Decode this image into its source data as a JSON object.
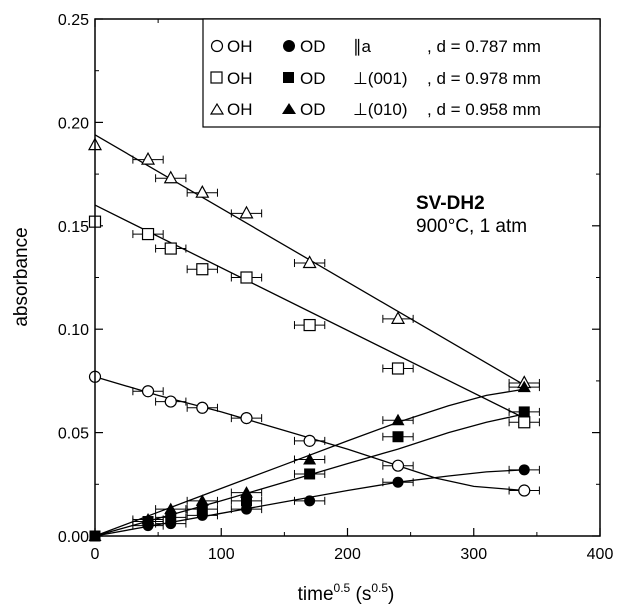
{
  "chart_data": {
    "type": "scatter",
    "xlabel_base": "time",
    "xlabel_sup1": "0.5",
    "xlabel_mid": " (s",
    "xlabel_sup2": "0.5",
    "xlabel_end": ")",
    "ylabel": "absorbance",
    "xlim": [
      0,
      400
    ],
    "ylim": [
      0,
      0.25
    ],
    "x_ticks": [
      "0",
      "100",
      "200",
      "300",
      "400"
    ],
    "y_ticks": [
      "0.00",
      "0.05",
      "0.10",
      "0.15",
      "0.20",
      "0.25"
    ],
    "annotation_title": "SV-DH2",
    "annotation_sub": "900°C, 1 atm",
    "legend_rows": [
      {
        "oh": "OH",
        "od": "OD",
        "orient": "∥a",
        "thickness": ", d = 0.787 mm"
      },
      {
        "oh": "OH",
        "od": "OD",
        "orient": "⊥(001)",
        "thickness": ", d = 0.978 mm"
      },
      {
        "oh": "OH",
        "od": "OD",
        "orient": "⊥(010)",
        "thickness": ", d = 0.958 mm"
      }
    ],
    "x": [
      0,
      42,
      60,
      85,
      120,
      170,
      240,
      340
    ],
    "x_error": 12,
    "series": [
      {
        "marker": "circle-open",
        "values": [
          0.077,
          0.07,
          0.065,
          0.062,
          0.057,
          0.046,
          0.034,
          0.022
        ]
      },
      {
        "marker": "square-open",
        "values": [
          0.152,
          0.146,
          0.139,
          0.129,
          0.125,
          0.102,
          0.081,
          0.055
        ]
      },
      {
        "marker": "triangle-open",
        "values": [
          0.189,
          0.182,
          0.173,
          0.166,
          0.156,
          0.132,
          0.105,
          0.074
        ]
      },
      {
        "marker": "circle-filled",
        "values": [
          0.0,
          0.005,
          0.006,
          0.01,
          0.013,
          0.017,
          0.026,
          0.032
        ]
      },
      {
        "marker": "square-filled",
        "values": [
          0.0,
          0.007,
          0.009,
          0.013,
          0.017,
          0.03,
          0.048,
          0.06
        ]
      },
      {
        "marker": "triangle-filled",
        "values": [
          0.0,
          0.008,
          0.013,
          0.017,
          0.021,
          0.037,
          0.056,
          0.072
        ]
      }
    ],
    "fit_lines": [
      {
        "points": [
          [
            0,
            0.077
          ],
          [
            50,
            0.068
          ],
          [
            100,
            0.06
          ],
          [
            150,
            0.051
          ],
          [
            200,
            0.042
          ],
          [
            240,
            0.034
          ],
          [
            270,
            0.028
          ],
          [
            300,
            0.024
          ],
          [
            340,
            0.022
          ]
        ]
      },
      {
        "points": [
          [
            0,
            0.16
          ],
          [
            340,
            0.057
          ]
        ]
      },
      {
        "points": [
          [
            0,
            0.194
          ],
          [
            340,
            0.073
          ]
        ]
      },
      {
        "points": [
          [
            0,
            0.0
          ],
          [
            50,
            0.0055
          ],
          [
            100,
            0.011
          ],
          [
            150,
            0.0165
          ],
          [
            200,
            0.022
          ],
          [
            240,
            0.026
          ],
          [
            280,
            0.029
          ],
          [
            310,
            0.031
          ],
          [
            340,
            0.032
          ]
        ]
      },
      {
        "points": [
          [
            0,
            0.0
          ],
          [
            50,
            0.0085
          ],
          [
            100,
            0.017
          ],
          [
            150,
            0.026
          ],
          [
            200,
            0.035
          ],
          [
            240,
            0.042
          ],
          [
            280,
            0.05
          ],
          [
            310,
            0.055
          ],
          [
            340,
            0.059
          ]
        ]
      },
      {
        "points": [
          [
            0,
            0.0
          ],
          [
            50,
            0.0115
          ],
          [
            100,
            0.023
          ],
          [
            150,
            0.0345
          ],
          [
            200,
            0.046
          ],
          [
            240,
            0.055
          ],
          [
            280,
            0.063
          ],
          [
            310,
            0.068
          ],
          [
            340,
            0.071
          ]
        ]
      }
    ]
  }
}
